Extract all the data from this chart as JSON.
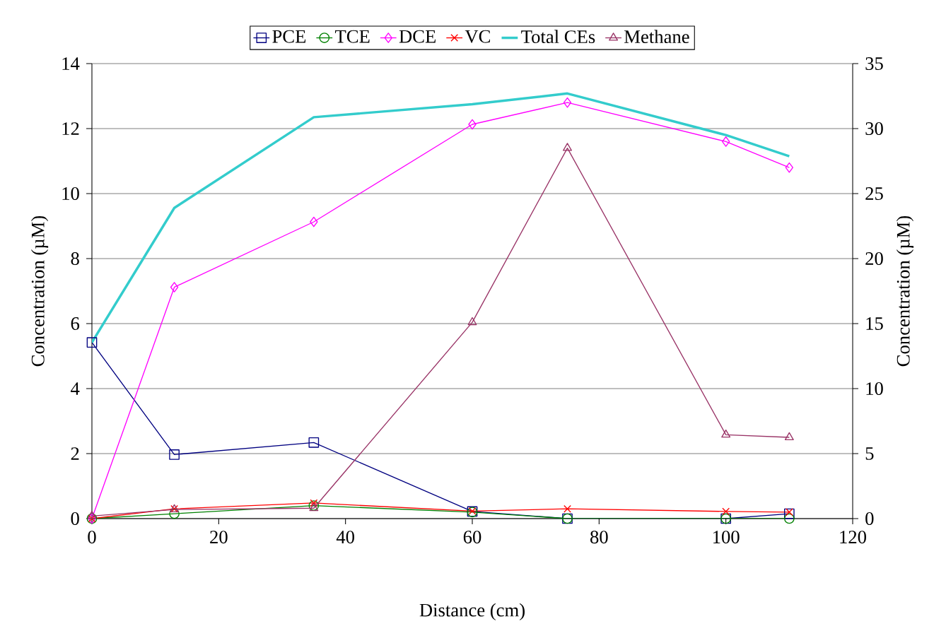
{
  "chart_data": {
    "type": "line",
    "xlabel": "Distance (cm)",
    "ylabel": "Concentration (µM)",
    "y2label": "Concentration (µM)",
    "x": [
      0,
      13,
      35,
      60,
      75,
      100,
      110
    ],
    "series": [
      {
        "name": "PCE",
        "color": "#000080",
        "marker": "square",
        "values": [
          5.42,
          1.97,
          2.34,
          0.22,
          0,
          0,
          0.15
        ]
      },
      {
        "name": "TCE",
        "color": "#008000",
        "marker": "circle",
        "values": [
          0,
          0.15,
          0.4,
          0.2,
          0,
          0,
          0
        ]
      },
      {
        "name": "DCE",
        "color": "#ff00ff",
        "marker": "diamond",
        "values": [
          0,
          7.12,
          9.13,
          12.13,
          12.8,
          11.6,
          10.8
        ]
      },
      {
        "name": "VC",
        "color": "#ff0000",
        "marker": "cross",
        "values": [
          0,
          0.3,
          0.48,
          0.23,
          0.3,
          0.22,
          0.2
        ]
      },
      {
        "name": "Total CEs",
        "color": "#33cccc",
        "marker": "none",
        "values": [
          5.42,
          9.56,
          12.35,
          12.75,
          13.08,
          11.8,
          11.15
        ]
      },
      {
        "name": "Methane",
        "color": "#993366",
        "marker": "triangle",
        "axis": "y2",
        "values": [
          0.2,
          0.7,
          0.8,
          15.1,
          28.5,
          6.45,
          6.25
        ]
      }
    ],
    "xlim": [
      0,
      120
    ],
    "xticks": [
      0,
      20,
      40,
      60,
      80,
      100,
      120
    ],
    "ylim": [
      0,
      14
    ],
    "yticks": [
      0,
      2,
      4,
      6,
      8,
      10,
      12,
      14
    ],
    "y2lim": [
      0,
      35
    ],
    "y2ticks": [
      0,
      5,
      10,
      15,
      20,
      25,
      30,
      35
    ],
    "grid": "y",
    "legend": "top"
  }
}
